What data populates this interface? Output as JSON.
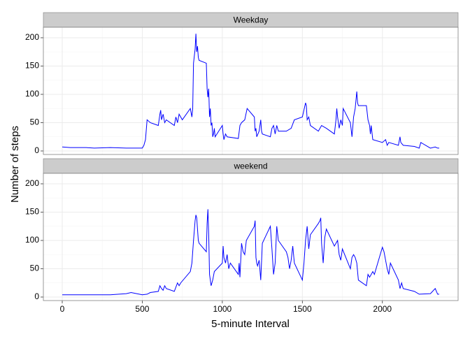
{
  "chart_data": [
    {
      "type": "line",
      "title": "Weekday",
      "y_label": "Number of steps",
      "color": "blue",
      "x": [
        0,
        50,
        100,
        150,
        200,
        300,
        400,
        500,
        510,
        520,
        530,
        550,
        600,
        610,
        615,
        620,
        630,
        640,
        650,
        700,
        710,
        720,
        730,
        740,
        750,
        800,
        810,
        815,
        820,
        830,
        835,
        840,
        845,
        850,
        855,
        900,
        905,
        910,
        915,
        920,
        925,
        930,
        935,
        940,
        945,
        950,
        955,
        1000,
        1005,
        1010,
        1020,
        1030,
        1100,
        1110,
        1120,
        1140,
        1155,
        1200,
        1205,
        1210,
        1215,
        1230,
        1240,
        1245,
        1250,
        1300,
        1310,
        1320,
        1330,
        1340,
        1350,
        1400,
        1430,
        1450,
        1500,
        1520,
        1525,
        1530,
        1540,
        1550,
        1600,
        1620,
        1650,
        1700,
        1710,
        1715,
        1720,
        1730,
        1740,
        1750,
        1755,
        1800,
        1810,
        1820,
        1830,
        1840,
        1845,
        1850,
        1900,
        1910,
        1920,
        1925,
        1930,
        1940,
        2000,
        2020,
        2030,
        2040,
        2100,
        2110,
        2115,
        2130,
        2200,
        2230,
        2240,
        2300,
        2330,
        2345,
        2355
      ],
      "values": [
        7,
        6,
        6,
        6,
        5,
        6,
        5,
        5,
        10,
        20,
        55,
        50,
        45,
        65,
        72,
        55,
        65,
        50,
        55,
        45,
        60,
        50,
        65,
        60,
        55,
        75,
        60,
        75,
        155,
        180,
        207,
        175,
        185,
        165,
        160,
        155,
        110,
        95,
        110,
        60,
        75,
        45,
        50,
        25,
        30,
        40,
        25,
        45,
        30,
        20,
        30,
        25,
        22,
        45,
        50,
        55,
        75,
        60,
        35,
        40,
        25,
        35,
        55,
        35,
        30,
        25,
        40,
        45,
        30,
        45,
        35,
        35,
        40,
        55,
        60,
        85,
        80,
        55,
        60,
        45,
        35,
        45,
        40,
        30,
        55,
        75,
        60,
        40,
        55,
        45,
        75,
        50,
        25,
        60,
        75,
        105,
        85,
        80,
        80,
        55,
        45,
        30,
        45,
        20,
        15,
        20,
        10,
        15,
        10,
        25,
        15,
        10,
        8,
        5,
        15,
        5,
        7,
        5,
        5
      ],
      "xlim": [
        -118,
        2473
      ],
      "xticks": [
        0,
        500,
        1000,
        1500,
        2000
      ],
      "ylim": [
        -6.2,
        218.5
      ],
      "yticks": [
        0,
        50,
        100,
        150,
        200
      ],
      "grid": true
    },
    {
      "type": "line",
      "title": "weekend",
      "x_label": "5-minute Interval",
      "color": "blue",
      "x": [
        0,
        100,
        200,
        300,
        400,
        430,
        500,
        530,
        550,
        600,
        610,
        620,
        630,
        640,
        650,
        700,
        720,
        730,
        740,
        800,
        810,
        820,
        830,
        835,
        840,
        850,
        855,
        900,
        905,
        910,
        915,
        920,
        930,
        940,
        950,
        1000,
        1005,
        1010,
        1020,
        1030,
        1040,
        1050,
        1100,
        1105,
        1110,
        1120,
        1130,
        1140,
        1150,
        1200,
        1205,
        1210,
        1215,
        1220,
        1230,
        1240,
        1250,
        1300,
        1310,
        1320,
        1330,
        1340,
        1350,
        1400,
        1410,
        1420,
        1430,
        1440,
        1450,
        1500,
        1510,
        1520,
        1530,
        1540,
        1550,
        1600,
        1610,
        1615,
        1620,
        1630,
        1640,
        1650,
        1700,
        1710,
        1720,
        1730,
        1740,
        1750,
        1800,
        1810,
        1820,
        1830,
        1840,
        1850,
        1900,
        1910,
        1920,
        1930,
        1940,
        1950,
        2000,
        2010,
        2020,
        2030,
        2040,
        2050,
        2100,
        2110,
        2120,
        2130,
        2200,
        2230,
        2300,
        2330,
        2345,
        2355
      ],
      "values": [
        4,
        4,
        4,
        4,
        6,
        8,
        4,
        5,
        8,
        10,
        20,
        15,
        12,
        20,
        15,
        10,
        25,
        20,
        25,
        45,
        60,
        100,
        135,
        145,
        140,
        100,
        95,
        80,
        130,
        155,
        110,
        40,
        20,
        30,
        45,
        60,
        90,
        70,
        60,
        75,
        50,
        60,
        40,
        60,
        35,
        95,
        80,
        75,
        100,
        125,
        135,
        70,
        60,
        55,
        65,
        30,
        95,
        125,
        85,
        40,
        60,
        125,
        100,
        80,
        70,
        50,
        65,
        90,
        60,
        30,
        60,
        100,
        125,
        85,
        110,
        130,
        135,
        140,
        95,
        60,
        105,
        120,
        90,
        95,
        100,
        75,
        65,
        85,
        50,
        70,
        75,
        70,
        60,
        30,
        20,
        40,
        35,
        40,
        45,
        40,
        88,
        80,
        65,
        50,
        40,
        60,
        30,
        15,
        25,
        15,
        10,
        5,
        6,
        15,
        5,
        5
      ],
      "xlim": [
        -118,
        2473
      ],
      "xticks": [
        0,
        500,
        1000,
        1500,
        2000
      ],
      "ylim": [
        -6.2,
        218.5
      ],
      "yticks": [
        0,
        50,
        100,
        150,
        200
      ],
      "grid": true
    }
  ]
}
